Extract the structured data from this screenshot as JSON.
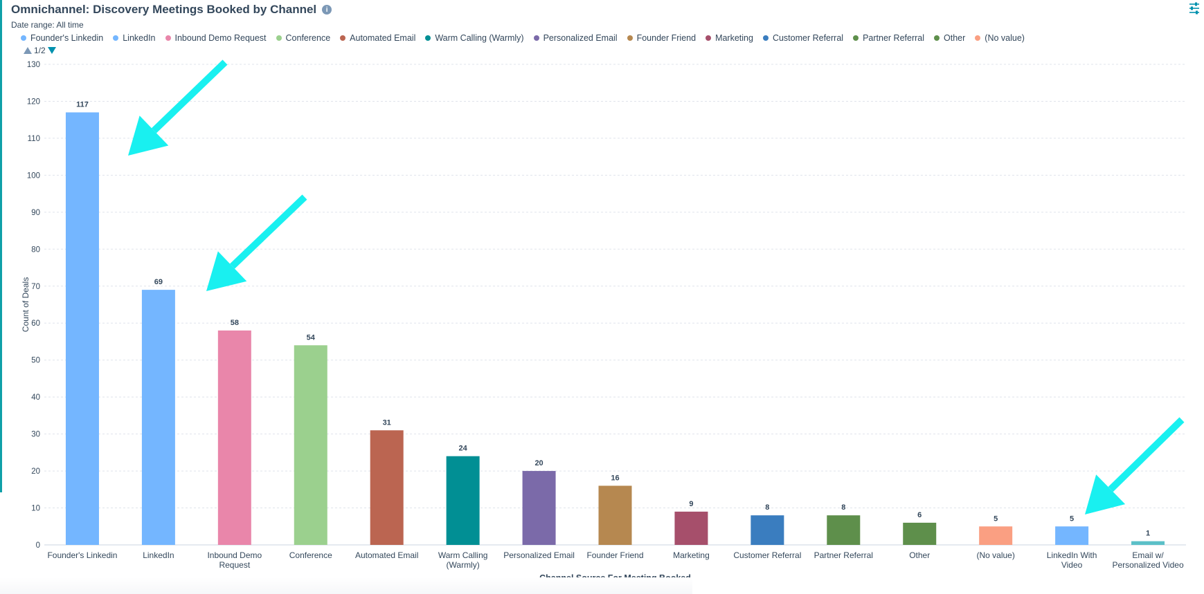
{
  "header": {
    "title": "Omnichannel: Discovery Meetings Booked by Channel",
    "date_range": "Date range: All time",
    "info_icon": "info-circle-icon",
    "settings_icon": "sliders-icon"
  },
  "legend_pager": {
    "label": "1/2"
  },
  "legend": [
    {
      "label": "Founder's Linkedin",
      "color": "#74b6ff"
    },
    {
      "label": "LinkedIn",
      "color": "#74b6ff"
    },
    {
      "label": "Inbound Demo Request",
      "color": "#e986aa"
    },
    {
      "label": "Conference",
      "color": "#9bd08e"
    },
    {
      "label": "Automated Email",
      "color": "#bb6551"
    },
    {
      "label": "Warm Calling (Warmly)",
      "color": "#018f94"
    },
    {
      "label": "Personalized Email",
      "color": "#7b6aa9"
    },
    {
      "label": "Founder Friend",
      "color": "#b68850"
    },
    {
      "label": "Marketing",
      "color": "#a64f6b"
    },
    {
      "label": "Customer Referral",
      "color": "#3a7dbf"
    },
    {
      "label": "Partner Referral",
      "color": "#5e8f4b"
    },
    {
      "label": "Other",
      "color": "#5e8f4b"
    },
    {
      "label": "(No value)",
      "color": "#fa9f82"
    }
  ],
  "chart_data": {
    "type": "bar",
    "xlabel": "Channel Source For Meeting Booked",
    "ylabel": "Count of Deals",
    "ylim": [
      0,
      130
    ],
    "yticks": [
      0,
      10,
      20,
      30,
      40,
      50,
      60,
      70,
      80,
      90,
      100,
      110,
      120,
      130
    ],
    "grid": true,
    "categories": [
      [
        "Founder's Linkedin"
      ],
      [
        "LinkedIn"
      ],
      [
        "Inbound Demo",
        "Request"
      ],
      [
        "Conference"
      ],
      [
        "Automated Email"
      ],
      [
        "Warm Calling",
        "(Warmly)"
      ],
      [
        "Personalized Email"
      ],
      [
        "Founder Friend"
      ],
      [
        "Marketing"
      ],
      [
        "Customer Referral"
      ],
      [
        "Partner Referral"
      ],
      [
        "Other"
      ],
      [
        "(No value)"
      ],
      [
        "LinkedIn With",
        "Video"
      ],
      [
        "Email w/",
        "Personalized Video"
      ]
    ],
    "values": [
      117,
      69,
      58,
      54,
      31,
      24,
      20,
      16,
      9,
      8,
      8,
      6,
      5,
      5,
      1
    ],
    "colors": [
      "#74b6ff",
      "#74b6ff",
      "#e986aa",
      "#9bd08e",
      "#bb6551",
      "#018f94",
      "#7b6aa9",
      "#b68850",
      "#a64f6b",
      "#3a7dbf",
      "#5e8f4b",
      "#5e8f4b",
      "#fa9f82",
      "#74b6ff",
      "#5bc0c8"
    ],
    "annotations": [
      {
        "type": "arrow",
        "color": "#19f0f0",
        "points_to": "Founder's Linkedin"
      },
      {
        "type": "arrow",
        "color": "#19f0f0",
        "points_to": "LinkedIn"
      },
      {
        "type": "arrow",
        "color": "#19f0f0",
        "points_to": "LinkedIn With Video"
      }
    ]
  }
}
